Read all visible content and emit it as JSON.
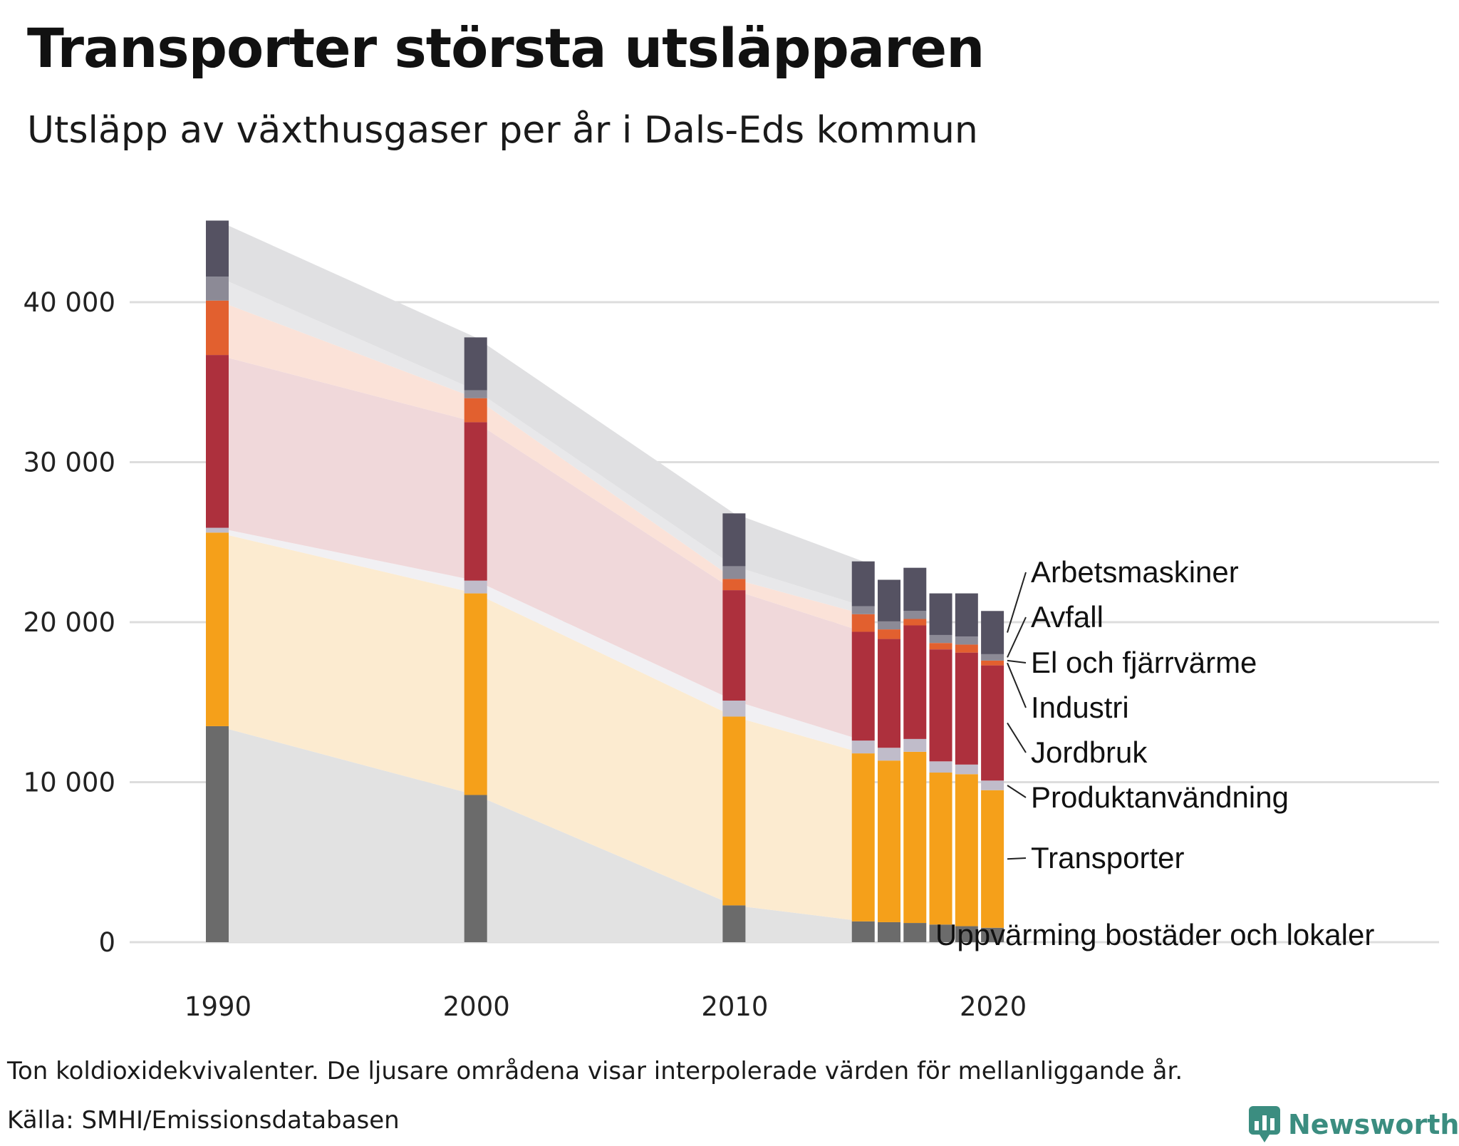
{
  "title": "Transporter största utsläpparen",
  "subtitle": "Utsläpp av växthusgaser per år i Dals-Eds kommun",
  "note": "Ton koldioxidekvivalenter. De ljusare områdena visar interpolerade värden för mellanliggande år.",
  "source": "Källa: SMHI/Emissionsdatabasen",
  "brand": "Newsworthy",
  "colors": {
    "grid": "#dddddd",
    "brand": "#3b8d80"
  },
  "chart_data": {
    "type": "bar",
    "stacked": true,
    "title": "Utsläpp av växthusgaser per år i Dals-Eds kommun",
    "ylabel": "Ton koldioxidekvivalenter",
    "ylim": [
      0,
      45500
    ],
    "y_ticks": [
      0,
      10000,
      20000,
      30000,
      40000
    ],
    "y_tick_labels": [
      "0",
      "10 000",
      "20 000",
      "30 000",
      "40 000"
    ],
    "x_ticks": [
      1990,
      2000,
      2010,
      2020
    ],
    "x_tick_labels": [
      "1990",
      "2000",
      "2010",
      "2020"
    ],
    "years": [
      1990,
      2000,
      2010,
      2015,
      2016,
      2017,
      2018,
      2019,
      2020
    ],
    "series": [
      {
        "name": "Uppvärming bostäder och lokaler",
        "color": "#6b6b6b",
        "light": "#e2e2e2",
        "values": [
          13500,
          9200,
          2300,
          1300,
          1250,
          1200,
          1100,
          1000,
          900
        ]
      },
      {
        "name": "Transporter",
        "color": "#f5a01a",
        "light": "#fcebd0",
        "values": [
          12100,
          12600,
          11800,
          10500,
          10100,
          10700,
          9500,
          9500,
          8600
        ]
      },
      {
        "name": "Produktanvändning",
        "color": "#c0bcca",
        "light": "#f1f0f3",
        "values": [
          300,
          800,
          1000,
          800,
          800,
          800,
          700,
          600,
          600
        ]
      },
      {
        "name": "Jordbruk",
        "color": "#ad303d",
        "light": "#f0d8da",
        "values": [
          10800,
          9900,
          6900,
          6800,
          6800,
          7100,
          7000,
          7000,
          7200
        ]
      },
      {
        "name": "Industri",
        "color": "#e2602f",
        "light": "#fbe2d8",
        "values": [
          3400,
          1500,
          700,
          1100,
          600,
          400,
          400,
          500,
          300
        ]
      },
      {
        "name": "El och fjärrvärme",
        "color": "#c0bcca",
        "light": "#f1f0f3",
        "values": [
          0,
          0,
          0,
          0,
          0,
          0,
          0,
          0,
          0
        ]
      },
      {
        "name": "Avfall",
        "color": "#8c8a96",
        "light": "#e8e8ea",
        "values": [
          1500,
          500,
          800,
          500,
          500,
          500,
          500,
          500,
          400
        ]
      },
      {
        "name": "Arbetsmaskiner",
        "color": "#555262",
        "light": "#e0e0e2",
        "values": [
          3500,
          3300,
          3300,
          2800,
          2600,
          2700,
          2600,
          2700,
          2700
        ]
      }
    ],
    "labels_top_down": [
      "Arbetsmaskiner",
      "Avfall",
      "El och fjärrvärme",
      "Industri",
      "Jordbruk",
      "Produktanvändning",
      "Transporter",
      "Uppvärming bostäder och lokaler"
    ]
  }
}
